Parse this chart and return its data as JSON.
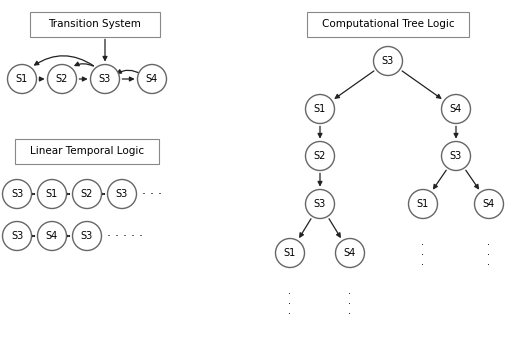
{
  "bg_color": "#ffffff",
  "node_facecolor": "#ffffff",
  "node_edgecolor": "#666666",
  "arrow_color": "#222222",
  "text_color": "#000000",
  "box_facecolor": "#ffffff",
  "box_edgecolor": "#888888",
  "ts_label": "Transition System",
  "ltl_label": "Linear Temporal Logic",
  "ctl_label": "Computational Tree Logic",
  "ltl_row1": [
    "S3",
    "S1",
    "S2",
    "S3"
  ],
  "ltl_row2": [
    "S3",
    "S4",
    "S3"
  ],
  "fig_width": 5.08,
  "fig_height": 3.51,
  "dpi": 100
}
